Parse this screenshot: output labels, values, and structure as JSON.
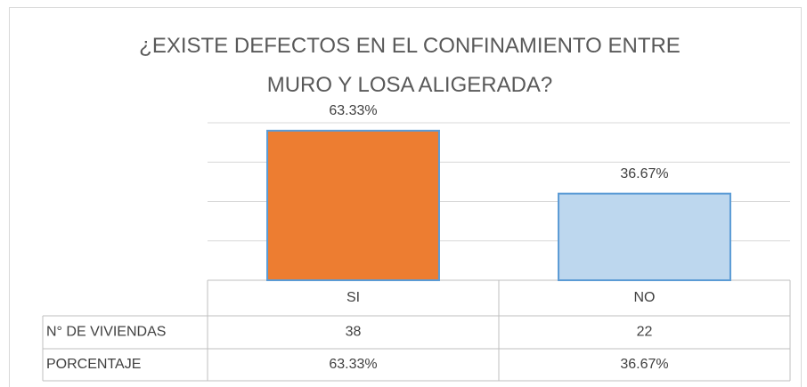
{
  "chart_data": {
    "type": "bar",
    "title": "¿EXISTE DEFECTOS EN EL CONFINAMIENTO ENTRE MURO Y LOSA ALIGERADA?",
    "categories": [
      "SI",
      "NO"
    ],
    "values": [
      63.33,
      36.67
    ],
    "value_labels": [
      "63.33%",
      "36.67%"
    ],
    "colors": [
      "#ed7d31",
      "#bdd7ee"
    ],
    "edge_color": "#5b9bd5",
    "ylim": [
      0,
      66.67
    ],
    "yticks": [
      0,
      16.67,
      33.33,
      50,
      66.67
    ],
    "grid": true,
    "table": {
      "rows": [
        {
          "label": "N° DE VIVIENDAS",
          "values": [
            38,
            22
          ]
        },
        {
          "label": "PORCENTAJE",
          "values": [
            63.33,
            36.67
          ],
          "value_labels": [
            "63.33%",
            "36.67%"
          ]
        }
      ]
    }
  }
}
